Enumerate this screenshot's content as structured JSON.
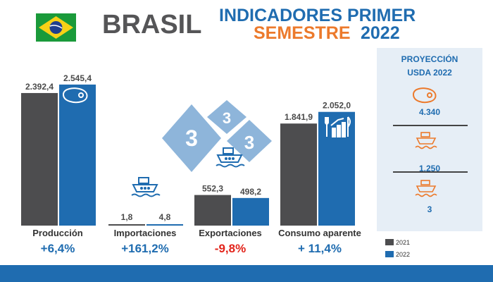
{
  "header": {
    "country": "BRASIL",
    "title_line1": "INDICADORES PRIMER",
    "title_line2a": "SEMESTRE",
    "title_line2b": "2022"
  },
  "colors": {
    "s2021": "#4d4d4f",
    "s2022": "#1f6cb0",
    "orange": "#ec7a2c",
    "positive": "#1f6cb0",
    "negative": "#e2231a"
  },
  "chart_data": {
    "type": "bar",
    "categories": [
      "Producción",
      "Importaciones",
      "Exportaciones",
      "Consumo aparente"
    ],
    "series": [
      {
        "name": "2021",
        "values": [
          2392.4,
          1.8,
          552.3,
          1841.9
        ],
        "labels": [
          "2.392,4",
          "1,8",
          "552,3",
          "1.841,9"
        ]
      },
      {
        "name": "2022",
        "values": [
          2545.4,
          4.8,
          498.2,
          2052.0
        ],
        "labels": [
          "2.545,4",
          "4,8",
          "498,2",
          "2.052,0"
        ]
      }
    ],
    "changes": [
      "+6,4%",
      "+161,2%",
      "-9,8%",
      "+ 11,4%"
    ],
    "legend_position": "bottom-right"
  },
  "projection": {
    "title_line1": "PROYECCIÓN",
    "title_line2": "USDA 2022",
    "values": [
      "4.340",
      "1.250",
      "3"
    ]
  },
  "badges": [
    "3",
    "3",
    "3"
  ],
  "icons": [
    "brazil-flag-icon",
    "steak-icon",
    "ship-icon",
    "restaurant-growth-icon"
  ]
}
